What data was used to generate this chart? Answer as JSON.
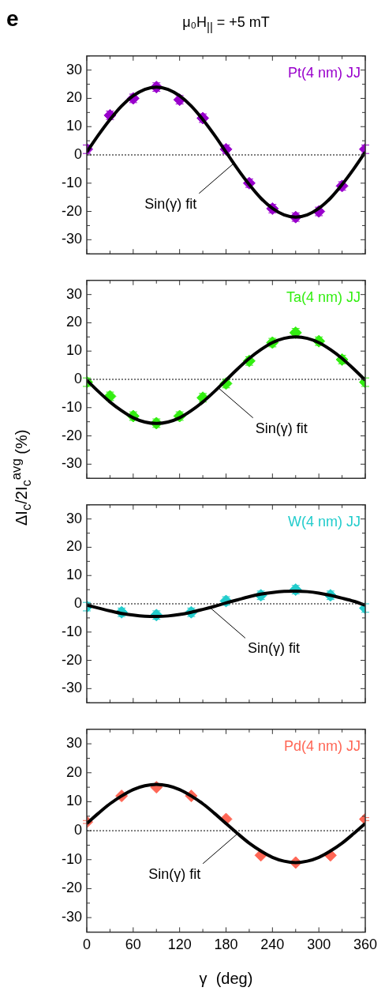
{
  "chart_data": [
    {
      "type": "scatter",
      "title": "μ₀H$_{||}$ = +5 mT",
      "annotations": [
        "e",
        {
          "text": "Sin(γ) fit",
          "x": 190,
          "y": -3
        }
      ],
      "xlim": [
        0,
        360
      ],
      "xticks": [
        0,
        {
          "value": 30,
          "label": null
        },
        60,
        {
          "value": 90,
          "label": null
        },
        120,
        {
          "value": 150,
          "label": null
        },
        180,
        {
          "value": 210,
          "label": null
        },
        240,
        {
          "value": 270,
          "label": null
        },
        300,
        {
          "value": 330,
          "label": null
        },
        360
      ],
      "ylim": [
        -35,
        35
      ],
      "yticks": [
        {
          "value": -35,
          "label": null
        },
        -30,
        {
          "value": -25,
          "label": null
        },
        -20,
        {
          "value": -15,
          "label": null
        },
        -10,
        {
          "value": -5,
          "label": null
        },
        0,
        {
          "value": 5,
          "label": null
        },
        10,
        {
          "value": 15,
          "label": null
        },
        20,
        {
          "value": 25,
          "label": null
        },
        30,
        {
          "value": 35,
          "label": null
        }
      ],
      "tick_labels": "y",
      "grid": false,
      "legend": "top right",
      "ref_lines": [
        {
          "axis": "y",
          "value": 0,
          "color": "#000000",
          "line_style": "dotted"
        }
      ],
      "series": [
        {
          "name": "Pt(4 nm) JJ",
          "color": "#9900cc",
          "marker": "diamond",
          "x": [
            0,
            30,
            60,
            90,
            120,
            150,
            180,
            210,
            240,
            270,
            300,
            330,
            360
          ],
          "values": [
            2,
            14,
            20,
            24,
            19.5,
            13,
            2,
            -10,
            -19,
            -22,
            -20,
            -11,
            2
          ],
          "errors": [
            1.5,
            1.5,
            1.5,
            1.5,
            1.5,
            1.5,
            1.5,
            1.5,
            1.5,
            1.5,
            1.5,
            1.5,
            1.5
          ]
        },
        {
          "type": "line",
          "color": "#000000",
          "x": [
            0,
            15,
            30,
            45,
            60,
            75,
            90,
            105,
            120,
            135,
            150,
            165,
            180,
            195,
            210,
            225,
            240,
            255,
            270,
            285,
            300,
            315,
            330,
            345,
            360
          ],
          "values": [
            1,
            7,
            12.5,
            17.3,
            20.9,
            23.2,
            24,
            23.2,
            20.9,
            17.3,
            12.5,
            7,
            1,
            -5,
            -10.5,
            -15.3,
            -18.9,
            -21.2,
            -22,
            -21.2,
            -18.9,
            -15.3,
            -10.5,
            -5,
            1
          ]
        }
      ]
    },
    {
      "type": "scatter",
      "ylabel": "ΔI$_{c}$/2I$_{c}$$^{avg}$ (%)",
      "annotations": [
        {
          "text": "Sin(γ) fit",
          "x": 170,
          "y": -3
        }
      ],
      "xlim": [
        0,
        360
      ],
      "xticks": [
        0,
        {
          "value": 30,
          "label": null
        },
        60,
        {
          "value": 90,
          "label": null
        },
        120,
        {
          "value": 150,
          "label": null
        },
        180,
        {
          "value": 210,
          "label": null
        },
        240,
        {
          "value": 270,
          "label": null
        },
        300,
        {
          "value": 330,
          "label": null
        },
        360
      ],
      "ylim": [
        -35,
        35
      ],
      "yticks": [
        {
          "value": -35,
          "label": null
        },
        -30,
        {
          "value": -25,
          "label": null
        },
        -20,
        {
          "value": -15,
          "label": null
        },
        -10,
        {
          "value": -5,
          "label": null
        },
        0,
        {
          "value": 5,
          "label": null
        },
        10,
        {
          "value": 15,
          "label": null
        },
        20,
        {
          "value": 25,
          "label": null
        },
        30,
        {
          "value": 35,
          "label": null
        }
      ],
      "tick_labels": "y",
      "grid": false,
      "legend": "top right",
      "ref_lines": [
        {
          "axis": "y",
          "value": 0,
          "color": "#000000",
          "line_style": "dotted"
        }
      ],
      "series": [
        {
          "name": "Ta(4 nm) JJ",
          "color": "#33ee11",
          "marker": "diamond",
          "x": [
            0,
            30,
            60,
            90,
            120,
            150,
            180,
            210,
            240,
            270,
            300,
            330,
            360
          ],
          "values": [
            -1,
            -6,
            -13,
            -15.5,
            -13,
            -6.5,
            -1.5,
            6.5,
            13,
            16.5,
            13.5,
            7,
            -1
          ],
          "errors": [
            1.5,
            1.5,
            1.5,
            1.5,
            1.5,
            1.5,
            1.5,
            1.5,
            1.5,
            1.5,
            1.5,
            1.5,
            1.5
          ]
        },
        {
          "type": "line",
          "color": "#000000",
          "x": [
            0,
            15,
            30,
            45,
            60,
            75,
            90,
            105,
            120,
            135,
            150,
            165,
            180,
            195,
            210,
            225,
            240,
            255,
            270,
            285,
            300,
            315,
            330,
            345,
            360
          ],
          "values": [
            -0.3,
            -4.3,
            -8,
            -11.1,
            -13.6,
            -15.1,
            -15.6,
            -15.1,
            -13.6,
            -11.1,
            -8,
            -4.3,
            -0.3,
            3.7,
            7.4,
            10.5,
            13,
            14.5,
            15,
            14.5,
            13,
            10.5,
            7.4,
            3.7,
            -0.3
          ]
        }
      ]
    },
    {
      "type": "scatter",
      "annotations": [
        {
          "text": "Sin(γ) fit",
          "x": 160,
          "y": -1.5
        }
      ],
      "xlim": [
        0,
        360
      ],
      "xticks": [
        0,
        {
          "value": 30,
          "label": null
        },
        60,
        {
          "value": 90,
          "label": null
        },
        120,
        {
          "value": 150,
          "label": null
        },
        180,
        {
          "value": 210,
          "label": null
        },
        240,
        {
          "value": 270,
          "label": null
        },
        300,
        {
          "value": 330,
          "label": null
        },
        360
      ],
      "ylim": [
        -35,
        35
      ],
      "yticks": [
        {
          "value": -35,
          "label": null
        },
        -30,
        {
          "value": -25,
          "label": null
        },
        -20,
        {
          "value": -15,
          "label": null
        },
        -10,
        {
          "value": -5,
          "label": null
        },
        0,
        {
          "value": 5,
          "label": null
        },
        10,
        {
          "value": 15,
          "label": null
        },
        20,
        {
          "value": 25,
          "label": null
        },
        30,
        {
          "value": 35,
          "label": null
        }
      ],
      "tick_labels": "y",
      "grid": false,
      "legend": "top right",
      "ref_lines": [
        {
          "axis": "y",
          "value": 0,
          "color": "#000000",
          "line_style": "dotted"
        }
      ],
      "series": [
        {
          "name": "W(4 nm) JJ",
          "color": "#22cccc",
          "marker": "diamond",
          "x": [
            0,
            45,
            90,
            135,
            180,
            225,
            270,
            315,
            360
          ],
          "values": [
            -1,
            -3,
            -4,
            -3,
            1,
            3,
            5,
            3,
            -1.5
          ],
          "errors": [
            1.5,
            1.5,
            1.5,
            1.5,
            1.5,
            1.5,
            1.5,
            1.5,
            1.5
          ]
        },
        {
          "type": "line",
          "color": "#000000",
          "x": [
            0,
            15,
            30,
            45,
            60,
            75,
            90,
            105,
            120,
            135,
            150,
            165,
            180,
            195,
            210,
            225,
            240,
            255,
            270,
            285,
            300,
            315,
            330,
            345,
            360
          ],
          "values": [
            -0.5,
            -1.5,
            -2.5,
            -3.4,
            -4,
            -4.4,
            -4.5,
            -4.3,
            -3.8,
            -3,
            -2,
            -0.9,
            0.3,
            1.4,
            2.5,
            3.4,
            4,
            4.4,
            4.5,
            4.3,
            3.8,
            3,
            2,
            0.9,
            -0.5
          ]
        }
      ]
    },
    {
      "type": "scatter",
      "xlabel": "γ  (deg)",
      "annotations": [
        {
          "text": "Sin(γ) fit",
          "x": 195,
          "y": -1
        }
      ],
      "xlim": [
        0,
        360
      ],
      "xticks": [
        0,
        {
          "value": 30,
          "label": null
        },
        60,
        {
          "value": 90,
          "label": null
        },
        120,
        {
          "value": 150,
          "label": null
        },
        180,
        {
          "value": 210,
          "label": null
        },
        240,
        {
          "value": 270,
          "label": null
        },
        300,
        {
          "value": 330,
          "label": null
        },
        360
      ],
      "ylim": [
        -35,
        35
      ],
      "yticks": [
        {
          "value": -35,
          "label": null
        },
        -30,
        {
          "value": -25,
          "label": null
        },
        -20,
        {
          "value": -15,
          "label": null
        },
        -10,
        {
          "value": -5,
          "label": null
        },
        0,
        {
          "value": 5,
          "label": null
        },
        10,
        {
          "value": 15,
          "label": null
        },
        20,
        {
          "value": 25,
          "label": null
        },
        30,
        {
          "value": 35,
          "label": null
        }
      ],
      "grid": false,
      "legend": "top right",
      "ref_lines": [
        {
          "axis": "y",
          "value": 0,
          "color": "#000000",
          "line_style": "dotted"
        }
      ],
      "series": [
        {
          "name": "Pd(4 nm) JJ",
          "color": "#ff6655",
          "marker": "diamond",
          "x": [
            0,
            45,
            90,
            135,
            180,
            225,
            270,
            315,
            360
          ],
          "values": [
            3,
            12,
            15,
            12,
            4,
            -8.5,
            -11,
            -8.5,
            4
          ],
          "errors": [
            0.5,
            0.5,
            0.5,
            0.5,
            0.5,
            0.5,
            0.5,
            0.5,
            0.5
          ]
        },
        {
          "type": "line",
          "color": "#000000",
          "x": [
            0,
            15,
            30,
            45,
            60,
            75,
            90,
            105,
            120,
            135,
            150,
            165,
            180,
            195,
            210,
            225,
            240,
            255,
            270,
            285,
            300,
            315,
            330,
            345,
            360
          ],
          "values": [
            2.5,
            6,
            9.3,
            12,
            14.2,
            15.5,
            16,
            15.5,
            14.2,
            12,
            9.3,
            6,
            2.5,
            -1,
            -4.3,
            -7,
            -9.2,
            -10.5,
            -11,
            -10.5,
            -9.2,
            -7,
            -4.3,
            -1,
            2.5
          ]
        }
      ]
    }
  ]
}
